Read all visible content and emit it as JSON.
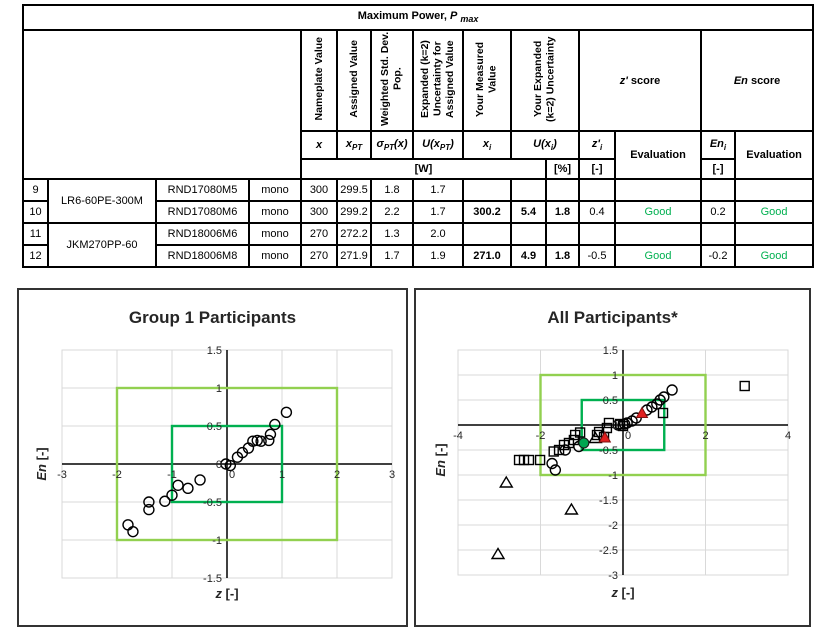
{
  "table": {
    "title": {
      "text": "Maximum Power, ",
      "var": "P",
      "sub": "max"
    },
    "headers": {
      "nameplate": "Nameplate Value",
      "assigned": "Assigned Value",
      "weighted": "Weighted Std. Dev. Pop.",
      "expanded": "Expanded (k=2) Uncertainty for Assigned Value",
      "measured": "Your Measured Value",
      "your_expanded": "Your Expanded (k=2) Uncertainty",
      "z_score": {
        "var": "z'",
        "rest": " score"
      },
      "en_score": {
        "var": "En",
        "rest": " score"
      }
    },
    "symbols": {
      "x": {
        "base": "x"
      },
      "xpt": {
        "base": "x",
        "sub": "PT"
      },
      "sigma": {
        "base": "σ",
        "sub": "PT",
        "suf": "(x)"
      },
      "uxpt": {
        "base": "U(x",
        "sub": "PT",
        "suf": ")"
      },
      "xi": {
        "base": "x",
        "sub": "i"
      },
      "uxi": {
        "base": "U(x",
        "sub": "i",
        "suf": ")"
      },
      "zi": {
        "base": "z'",
        "sub": "i"
      },
      "eni": {
        "base": "En",
        "sub": "i"
      },
      "evaluation": "Evaluation"
    },
    "units": {
      "w": "[W]",
      "pct": "[%]",
      "dash1": "[-]",
      "dash2": "[-]"
    },
    "rows": [
      {
        "num": "9",
        "module": "LR6-60PE-300M",
        "id": "RND17080M5",
        "type": "mono",
        "x": "300",
        "xpt": "299.5",
        "sigma": "1.8",
        "u": "1.7",
        "xi": "",
        "uw": "",
        "upct": "",
        "z": "",
        "zeval": "",
        "en": "",
        "eneval": ""
      },
      {
        "num": "10",
        "id": "RND17080M6",
        "type": "mono",
        "x": "300",
        "xpt": "299.2",
        "sigma": "2.2",
        "u": "1.7",
        "xi": "300.2",
        "uw": "5.4",
        "upct": "1.8",
        "z": "0.4",
        "zeval": "Good",
        "en": "0.2",
        "eneval": "Good"
      },
      {
        "num": "11",
        "module": "JKM270PP-60",
        "id": "RND18006M6",
        "type": "mono",
        "x": "270",
        "xpt": "272.2",
        "sigma": "1.3",
        "u": "2.0",
        "xi": "",
        "uw": "",
        "upct": "",
        "z": "",
        "zeval": "",
        "en": "",
        "eneval": ""
      },
      {
        "num": "12",
        "id": "RND18006M8",
        "type": "mono",
        "x": "270",
        "xpt": "271.9",
        "sigma": "1.7",
        "u": "1.9",
        "xi": "271.0",
        "uw": "4.9",
        "upct": "1.8",
        "z": "-0.5",
        "zeval": "Good",
        "en": "-0.2",
        "eneval": "Good"
      }
    ],
    "status_color": "#00B050"
  },
  "chart_data": [
    {
      "type": "scatter",
      "title": "Group 1 Participants",
      "xlabel": {
        "var": "z",
        "unit": " [-]"
      },
      "ylabel": {
        "var": "En",
        "unit": " [-]"
      },
      "xlim": [
        -3,
        3
      ],
      "ylim": [
        -1.5,
        1.5
      ],
      "xticks": [
        -3,
        -2,
        -1,
        0,
        1,
        2,
        3
      ],
      "yticks": [
        1.5,
        1,
        0.5,
        0,
        -0.5,
        -1,
        -1.5
      ],
      "grid_color": "#D9D9D9",
      "axis_color": "#000000",
      "boxes": [
        {
          "x": [
            -2,
            2
          ],
          "y": [
            -1,
            1
          ],
          "color": "#92D050",
          "label": "outer-limit-box"
        },
        {
          "x": [
            -1,
            1
          ],
          "y": [
            -0.5,
            0.5
          ],
          "color": "#00B050",
          "label": "inner-limit-box"
        }
      ],
      "series": [
        {
          "name": "group1-participants",
          "marker": "circle-open",
          "color": "#000000",
          "points": [
            [
              -1.8,
              -0.8
            ],
            [
              -1.71,
              -0.89
            ],
            [
              -1.42,
              -0.5
            ],
            [
              -1.42,
              -0.6
            ],
            [
              -1.13,
              -0.49
            ],
            [
              -1.0,
              -0.41
            ],
            [
              -0.89,
              -0.28
            ],
            [
              -0.71,
              -0.32
            ],
            [
              -0.49,
              -0.21
            ],
            [
              -0.02,
              0.0
            ],
            [
              0.06,
              -0.02
            ],
            [
              0.19,
              0.09
            ],
            [
              0.28,
              0.15
            ],
            [
              0.39,
              0.21
            ],
            [
              0.47,
              0.3
            ],
            [
              0.55,
              0.31
            ],
            [
              0.62,
              0.3
            ],
            [
              0.76,
              0.31
            ],
            [
              0.79,
              0.39
            ],
            [
              0.87,
              0.52
            ],
            [
              1.08,
              0.68
            ]
          ]
        }
      ]
    },
    {
      "type": "scatter",
      "title": "All Participants*",
      "xlabel": {
        "var": "z",
        "unit": " [-]"
      },
      "ylabel": {
        "var": "En",
        "unit": " [-]"
      },
      "xlim": [
        -4,
        4
      ],
      "ylim": [
        -3,
        1.5
      ],
      "xticks": [
        -4,
        -2,
        0,
        2,
        4
      ],
      "yticks": [
        1.5,
        1,
        0.5,
        0,
        -0.5,
        -1,
        -1.5,
        -2,
        -2.5,
        -3
      ],
      "grid_color": "#D9D9D9",
      "axis_color": "#000000",
      "boxes": [
        {
          "x": [
            -2,
            2
          ],
          "y": [
            -1,
            1
          ],
          "color": "#92D050",
          "label": "outer-limit-box"
        },
        {
          "x": [
            -1,
            1
          ],
          "y": [
            -0.5,
            0.5
          ],
          "color": "#00B050",
          "label": "inner-limit-box"
        }
      ],
      "series": [
        {
          "name": "participants-circles",
          "marker": "circle-open",
          "color": "#000000",
          "points": [
            [
              -1.72,
              -0.77
            ],
            [
              -1.64,
              -0.9
            ],
            [
              -1.4,
              -0.5
            ],
            [
              -1.07,
              -0.43
            ],
            [
              -0.12,
              0.0
            ],
            [
              0.04,
              0.02
            ],
            [
              0.1,
              0.04
            ],
            [
              0.22,
              0.08
            ],
            [
              0.32,
              0.14
            ],
            [
              0.58,
              0.3
            ],
            [
              0.7,
              0.36
            ],
            [
              0.82,
              0.42
            ],
            [
              0.9,
              0.5
            ],
            [
              0.99,
              0.56
            ],
            [
              1.19,
              0.7
            ]
          ]
        },
        {
          "name": "participants-squares",
          "marker": "square-open",
          "color": "#000000",
          "points": [
            [
              -2.52,
              -0.7
            ],
            [
              -2.4,
              -0.7
            ],
            [
              -2.28,
              -0.7
            ],
            [
              -2.01,
              -0.7
            ],
            [
              -1.68,
              -0.53
            ],
            [
              -1.55,
              -0.5
            ],
            [
              -1.43,
              -0.4
            ],
            [
              -1.31,
              -0.36
            ],
            [
              -1.19,
              -0.3
            ],
            [
              -1.16,
              -0.2
            ],
            [
              -1.04,
              -0.15
            ],
            [
              -0.63,
              -0.2
            ],
            [
              -0.58,
              -0.14
            ],
            [
              -0.46,
              -0.24
            ],
            [
              -0.39,
              -0.06
            ],
            [
              -0.34,
              0.04
            ],
            [
              -0.07,
              0.02
            ],
            [
              0.0,
              -0.02
            ],
            [
              0.97,
              0.24
            ],
            [
              2.95,
              0.78
            ]
          ]
        },
        {
          "name": "outlier-triangles",
          "marker": "triangle-open",
          "color": "#000000",
          "points": [
            [
              -3.03,
              -2.58
            ],
            [
              -2.83,
              -1.15
            ],
            [
              -1.25,
              -1.69
            ],
            [
              -0.67,
              -0.26
            ]
          ]
        },
        {
          "name": "highlighted-triangles",
          "marker": "triangle-filled",
          "color": "#E02020",
          "points": [
            [
              -0.44,
              -0.25
            ],
            [
              0.46,
              0.24
            ]
          ]
        },
        {
          "name": "highlighted-circle",
          "marker": "circle-filled",
          "color": "#00A650",
          "points": [
            [
              -0.95,
              -0.36
            ]
          ]
        }
      ]
    }
  ]
}
